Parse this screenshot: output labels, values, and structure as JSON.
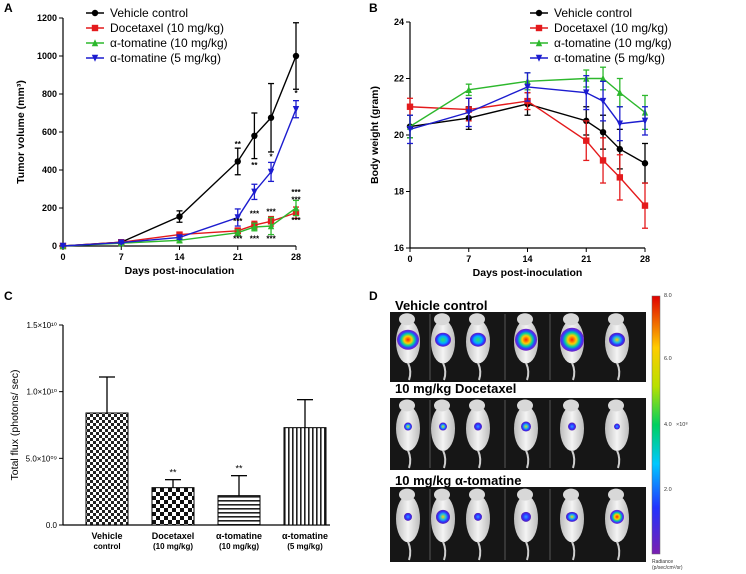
{
  "colors": {
    "vehicle": "#000000",
    "docetaxel": "#e41a1c",
    "tomatine10": "#2db82d",
    "tomatine5": "#1c1ccf"
  },
  "panels": {
    "A": "A",
    "B": "B",
    "C": "C",
    "D": "D"
  },
  "chart_data": [
    {
      "id": "A",
      "type": "line",
      "xlabel": "Days post-inoculation",
      "ylabel": "Tumor volume (mm³)",
      "xlim": [
        0,
        28
      ],
      "ylim": [
        0,
        1200
      ],
      "xticks": [
        "0",
        "7",
        "14",
        "21",
        "28"
      ],
      "yticks": [
        "0",
        "200",
        "400",
        "600",
        "800",
        "1000",
        "1200"
      ],
      "legend": [
        "Vehicle control",
        "Docetaxel (10 mg/kg)",
        "α-tomatine (10 mg/kg)",
        "α-tomatine (5 mg/kg)"
      ],
      "series": [
        {
          "name": "Vehicle control",
          "color_key": "vehicle",
          "marker": "circle",
          "x": [
            0,
            7,
            14,
            21,
            23,
            25,
            28
          ],
          "y": [
            0,
            20,
            155,
            445,
            580,
            675,
            1000
          ],
          "err": [
            3,
            8,
            30,
            70,
            120,
            180,
            175
          ]
        },
        {
          "name": "Docetaxel (10 mg/kg)",
          "color_key": "docetaxel",
          "marker": "square",
          "x": [
            0,
            7,
            14,
            21,
            23,
            25,
            28
          ],
          "y": [
            0,
            20,
            60,
            80,
            110,
            130,
            175
          ],
          "err": [
            3,
            5,
            10,
            15,
            20,
            25,
            30
          ]
        },
        {
          "name": "α-tomatine (10 mg/kg)",
          "color_key": "tomatine10",
          "marker": "triangle",
          "x": [
            0,
            7,
            14,
            21,
            23,
            25,
            28
          ],
          "y": [
            0,
            15,
            30,
            70,
            100,
            105,
            200
          ],
          "err": [
            3,
            5,
            10,
            15,
            20,
            45,
            40
          ]
        },
        {
          "name": "α-tomatine (5 mg/kg)",
          "color_key": "tomatine5",
          "marker": "tridown",
          "x": [
            0,
            7,
            14,
            21,
            23,
            25,
            28
          ],
          "y": [
            0,
            18,
            45,
            150,
            285,
            390,
            720
          ],
          "err": [
            3,
            5,
            10,
            45,
            40,
            50,
            45
          ]
        }
      ],
      "annotations": [
        {
          "x": 21,
          "y": 520,
          "text": "**"
        },
        {
          "x": 23,
          "y": 410,
          "text": "**"
        },
        {
          "x": 25,
          "y": 455,
          "text": "*"
        },
        {
          "x": 28,
          "y": 790,
          "text": "*"
        },
        {
          "x": 21,
          "y": 115,
          "text": "***"
        },
        {
          "x": 21,
          "y": 25,
          "text": "***"
        },
        {
          "x": 23,
          "y": 155,
          "text": "***"
        },
        {
          "x": 23,
          "y": 25,
          "text": "***"
        },
        {
          "x": 25,
          "y": 165,
          "text": "***"
        },
        {
          "x": 25,
          "y": 25,
          "text": "***"
        },
        {
          "x": 28,
          "y": 268,
          "text": "***"
        },
        {
          "x": 28,
          "y": 228,
          "text": "***"
        },
        {
          "x": 28,
          "y": 120,
          "text": "***"
        }
      ]
    },
    {
      "id": "B",
      "type": "line",
      "xlabel": "Days post-inoculation",
      "ylabel": "Body weight (gram)",
      "xlim": [
        0,
        28
      ],
      "ylim": [
        16,
        24
      ],
      "xticks": [
        "0",
        "7",
        "14",
        "21",
        "28"
      ],
      "yticks": [
        "16",
        "18",
        "20",
        "22",
        "24"
      ],
      "legend": [
        "Vehicle control",
        "Docetaxel (10 mg/kg)",
        "α-tomatine (10 mg/kg)",
        "α-tomatine (5 mg/kg)"
      ],
      "series": [
        {
          "name": "Vehicle control",
          "color_key": "vehicle",
          "marker": "circle",
          "x": [
            0,
            7,
            14,
            21,
            23,
            25,
            28
          ],
          "y": [
            20.3,
            20.6,
            21.1,
            20.5,
            20.1,
            19.5,
            19.0
          ],
          "err": [
            0.4,
            0.4,
            0.4,
            0.5,
            0.6,
            0.7,
            0.7
          ]
        },
        {
          "name": "Docetaxel (10 mg/kg)",
          "color_key": "docetaxel",
          "marker": "square",
          "x": [
            0,
            7,
            14,
            21,
            23,
            25,
            28
          ],
          "y": [
            21.0,
            20.9,
            21.2,
            19.8,
            19.1,
            18.5,
            17.5
          ],
          "err": [
            0.3,
            0.4,
            0.3,
            0.7,
            0.8,
            0.8,
            0.8
          ]
        },
        {
          "name": "α-tomatine (10 mg/kg)",
          "color_key": "tomatine10",
          "marker": "triangle",
          "x": [
            0,
            7,
            14,
            21,
            23,
            25,
            28
          ],
          "y": [
            20.3,
            21.6,
            21.9,
            22.0,
            22.0,
            21.5,
            20.8
          ],
          "err": [
            0.4,
            0.2,
            0.3,
            0.3,
            0.4,
            0.5,
            0.6
          ]
        },
        {
          "name": "α-tomatine (5 mg/kg)",
          "color_key": "tomatine5",
          "marker": "tridown",
          "x": [
            0,
            7,
            14,
            21,
            23,
            25,
            28
          ],
          "y": [
            20.2,
            20.8,
            21.7,
            21.5,
            21.2,
            20.4,
            20.5
          ],
          "err": [
            0.5,
            0.5,
            0.5,
            0.6,
            0.7,
            0.6,
            0.5
          ]
        }
      ]
    },
    {
      "id": "C",
      "type": "bar",
      "ylabel": "Total flux (photons/ sec)",
      "ylim": [
        0,
        15000000000.0
      ],
      "yticks": [
        "0.0",
        "5.0×10⁰⁹",
        "1.0×10¹⁰",
        "1.5×10¹⁰"
      ],
      "categories": [
        [
          "Vehicle",
          "control"
        ],
        [
          "Docetaxel",
          "(10 mg/kg)"
        ],
        [
          "α-tomatine",
          "(10 mg/kg)"
        ],
        [
          "α-tomatine",
          "(5 mg/kg)"
        ]
      ],
      "values": [
        8400000000.0,
        2800000000.0,
        2200000000.0,
        7300000000.0
      ],
      "errors": [
        2700000000.0,
        600000000.0,
        1500000000.0,
        2100000000.0
      ],
      "sig": [
        "",
        "**",
        "**",
        ""
      ],
      "patterns": [
        "checker",
        "checker-fine",
        "hstripe",
        "vstripe"
      ]
    }
  ],
  "imaging": {
    "groups": [
      "Vehicle control",
      "10 mg/kg Docetaxel",
      "10 mg/kg α-tomatine"
    ],
    "colorbar": {
      "ticks": [
        "8.0",
        "6.0",
        "4.0",
        "2.0"
      ],
      "exponent_label": "×10⁸",
      "title": "Radiance",
      "units": "(p/sec/cm²/sr)"
    }
  }
}
